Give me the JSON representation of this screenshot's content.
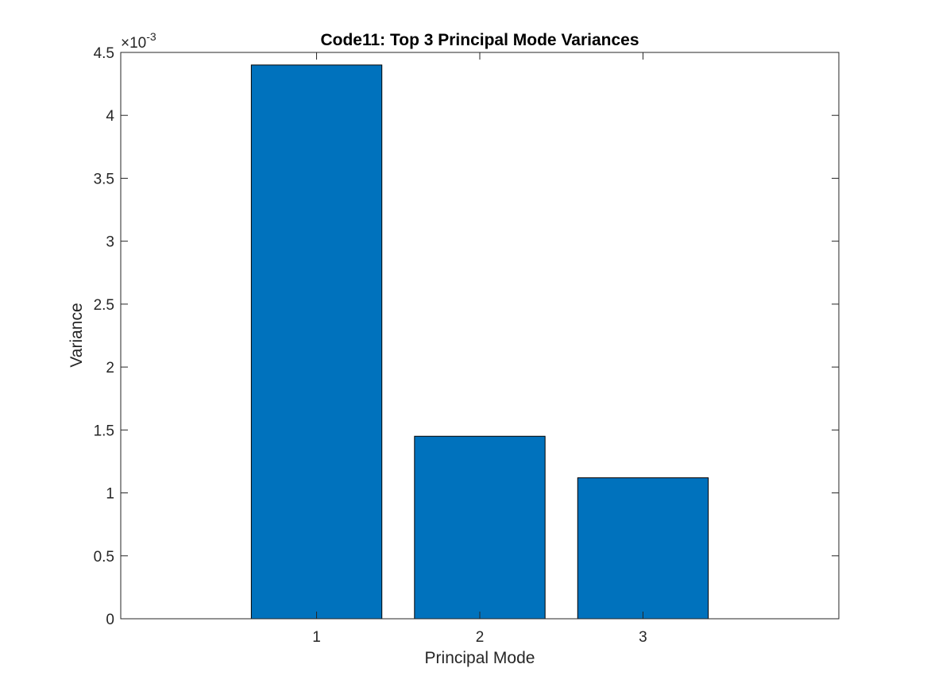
{
  "chart_data": {
    "type": "bar",
    "title": "Code11: Top 3 Principal Mode Variances",
    "xlabel": "Principal Mode",
    "ylabel": "Variance",
    "categories": [
      "1",
      "2",
      "3"
    ],
    "values": [
      0.0044,
      0.00145,
      0.00112
    ],
    "xlim": [
      -0.2,
      4.2
    ],
    "ylim": [
      0,
      0.0045
    ],
    "x_ticks": [
      "1",
      "2",
      "3"
    ],
    "y_ticks": [
      {
        "value": 0,
        "label": "0"
      },
      {
        "value": 0.0005,
        "label": "0.5"
      },
      {
        "value": 0.001,
        "label": "1"
      },
      {
        "value": 0.0015,
        "label": "1.5"
      },
      {
        "value": 0.002,
        "label": "2"
      },
      {
        "value": 0.0025,
        "label": "2.5"
      },
      {
        "value": 0.003,
        "label": "3"
      },
      {
        "value": 0.0035,
        "label": "3.5"
      },
      {
        "value": 0.004,
        "label": "4"
      },
      {
        "value": 0.0045,
        "label": "4.5"
      }
    ],
    "y_exponent_base": "×10",
    "y_exponent_power": "-3",
    "bar_width": 0.8,
    "grid": false,
    "colors": {
      "bar_fill": "#0072BD",
      "bar_edge": "#000000",
      "axis": "#262626"
    }
  }
}
